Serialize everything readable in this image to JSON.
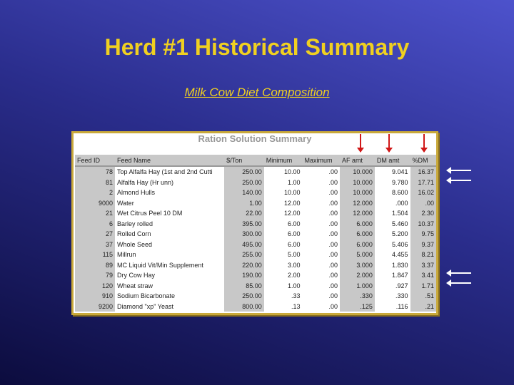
{
  "slide": {
    "title": "Herd #1 Historical Summary",
    "subtitle": "Milk Cow Diet Composition"
  },
  "panel": {
    "title": "Ration Solution Summary",
    "columns": [
      "Feed ID",
      "Feed Name",
      "$/Ton",
      "Minimum",
      "Maximum",
      "AF amt",
      "DM amt",
      "%DM"
    ],
    "rows": [
      [
        "78",
        "Top Alfalfa Hay (1st and 2nd Cutti",
        "250.00",
        "10.00",
        ".00",
        "10.000",
        "9.041",
        "16.37"
      ],
      [
        "81",
        "Alfalfa Hay (Hr unn)",
        "250.00",
        "1.00",
        ".00",
        "10.000",
        "9.780",
        "17.71"
      ],
      [
        "2",
        "Almond Hulls",
        "140.00",
        "10.00",
        ".00",
        "10.000",
        "8.600",
        "16.02"
      ],
      [
        "9000",
        "Water",
        "1.00",
        "12.00",
        ".00",
        "12.000",
        ".000",
        ".00"
      ],
      [
        "21",
        "Wet Citrus Peel 10 DM",
        "22.00",
        "12.00",
        ".00",
        "12.000",
        "1.504",
        "2.30"
      ],
      [
        "6",
        "Barley rolled",
        "395.00",
        "6.00",
        ".00",
        "6.000",
        "5.460",
        "10.37"
      ],
      [
        "27",
        "Rolled Corn",
        "300.00",
        "6.00",
        ".00",
        "6.000",
        "5.200",
        "9.75"
      ],
      [
        "37",
        "Whole Seed",
        "495.00",
        "6.00",
        ".00",
        "6.000",
        "5.406",
        "9.37"
      ],
      [
        "115",
        "Millrun",
        "255.00",
        "5.00",
        ".00",
        "5.000",
        "4.455",
        "8.21"
      ],
      [
        "89",
        "MC Liquid Vit/Min Supplement",
        "220.00",
        "3.00",
        ".00",
        "3.000",
        "1.830",
        "3.37"
      ],
      [
        "79",
        "Dry Cow Hay",
        "190.00",
        "2.00",
        ".00",
        "2.000",
        "1.847",
        "3.41"
      ],
      [
        "120",
        "Wheat straw",
        "85.00",
        "1.00",
        ".00",
        "1.000",
        ".927",
        "1.71"
      ],
      [
        "910",
        "Sodium Bicarbonate",
        "250.00",
        ".33",
        ".00",
        ".330",
        ".330",
        ".51"
      ],
      [
        "9200",
        "Diamond \"xp\" Yeast",
        "800.00",
        ".13",
        ".00",
        ".125",
        ".116",
        ".21"
      ]
    ]
  },
  "colors": {
    "title": "#f0d020",
    "arrow_red": "#d01818",
    "arrow_white": "#ffffff",
    "border": "#c9a93a"
  }
}
